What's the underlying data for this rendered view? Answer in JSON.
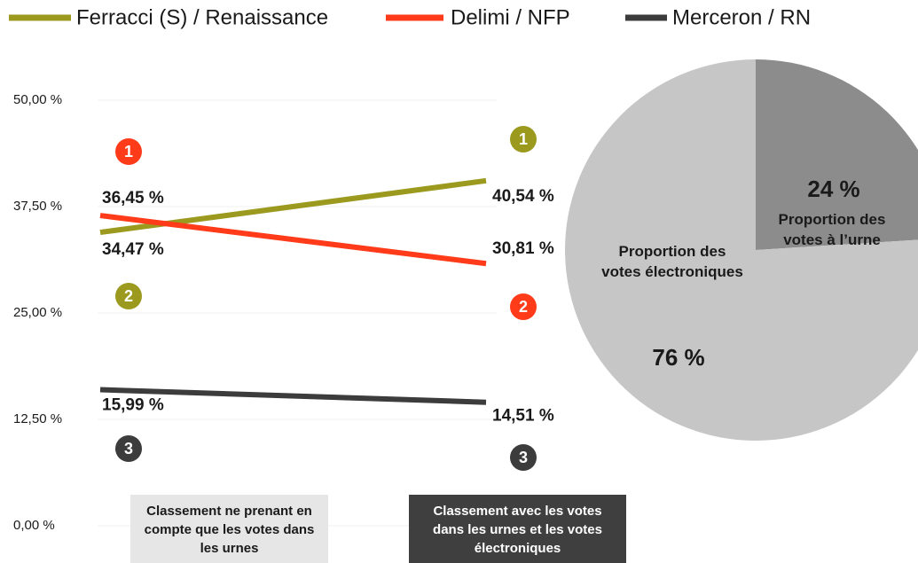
{
  "chart_data": [
    {
      "type": "line",
      "categories": [
        "Classement ne prenant en compte que les votes dans les urnes",
        "Classement avec les votes dans les urnes et les votes électroniques"
      ],
      "series": [
        {
          "name": "Ferracci (S) / Renaissance",
          "color": "#9b9a1f",
          "values": [
            34.47,
            40.54
          ],
          "value_labels": [
            "34,47 %",
            "40,54 %"
          ],
          "ranks": [
            2,
            1
          ]
        },
        {
          "name": "Delimi / NFP",
          "color": "#ff3b1a",
          "values": [
            36.45,
            30.81
          ],
          "value_labels": [
            "36,45 %",
            "30,81 %"
          ],
          "ranks": [
            1,
            2
          ]
        },
        {
          "name": "Merceron / RN",
          "color": "#3c3c3c",
          "values": [
            15.99,
            14.51
          ],
          "value_labels": [
            "15,99 %",
            "14,51 %"
          ],
          "ranks": [
            3,
            3
          ]
        }
      ],
      "ylim": [
        0,
        50
      ],
      "yticks": [
        {
          "value": 0,
          "label": "0,00 %"
        },
        {
          "value": 12.5,
          "label": "12,50 %"
        },
        {
          "value": 25,
          "label": "25,00 %"
        },
        {
          "value": 37.5,
          "label": "37,50 %"
        },
        {
          "value": 50,
          "label": "50,00 %"
        }
      ],
      "grid": true
    },
    {
      "type": "pie",
      "categories": [
        "Proportion des votes à l’urne",
        "Proportion des votes électroniques"
      ],
      "values": [
        24,
        76
      ],
      "value_labels": [
        "24 %",
        "76 %"
      ],
      "colors": [
        "#8c8c8c",
        "#c6c6c6"
      ]
    }
  ]
}
